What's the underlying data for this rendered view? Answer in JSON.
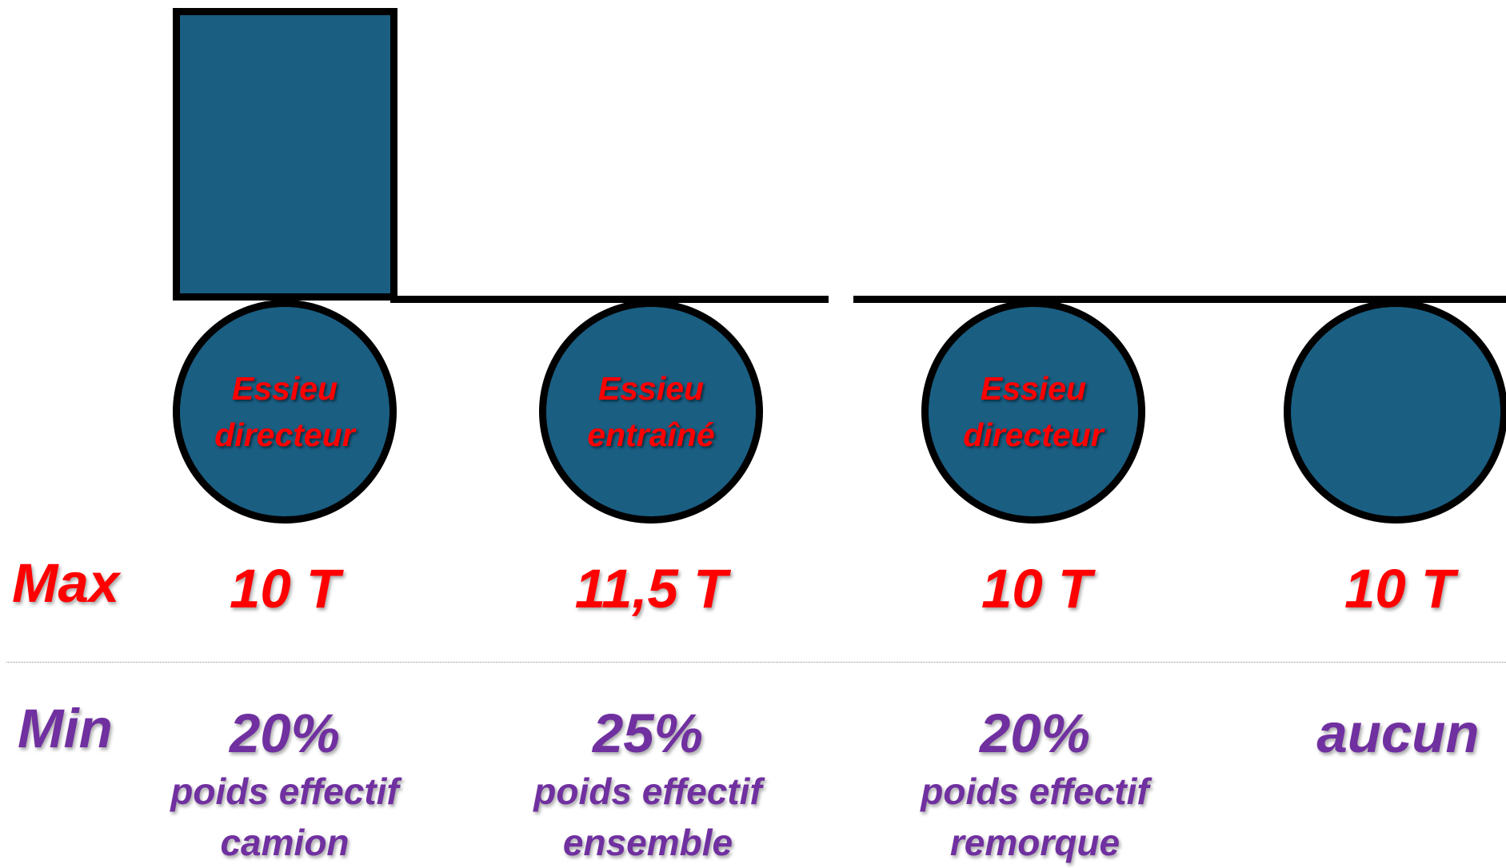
{
  "axles": [
    {
      "label_line1": "Essieu",
      "label_line2": "directeur",
      "max": "10 T",
      "min_value": "20%",
      "min_desc_line1": "poids effectif",
      "min_desc_line2": "camion"
    },
    {
      "label_line1": "Essieu",
      "label_line2": "entraîné",
      "max": "11,5 T",
      "min_value": "25%",
      "min_desc_line1": "poids effectif",
      "min_desc_line2": "ensemble"
    },
    {
      "label_line1": "Essieu",
      "label_line2": "directeur",
      "max": "10 T",
      "min_value": "20%",
      "min_desc_line1": "poids effectif",
      "min_desc_line2": "remorque"
    },
    {
      "label_line1": "",
      "label_line2": "",
      "max": "10 T",
      "min_value": "aucun",
      "min_desc_line1": "",
      "min_desc_line2": ""
    }
  ],
  "row_labels": {
    "max": "Max",
    "min": "Min"
  },
  "colors": {
    "vehicle_fill": "#1a5e82",
    "outline": "#000000",
    "max_text": "#ff0000",
    "min_text": "#7030a0",
    "wheel_label_text": "#ff0000"
  }
}
